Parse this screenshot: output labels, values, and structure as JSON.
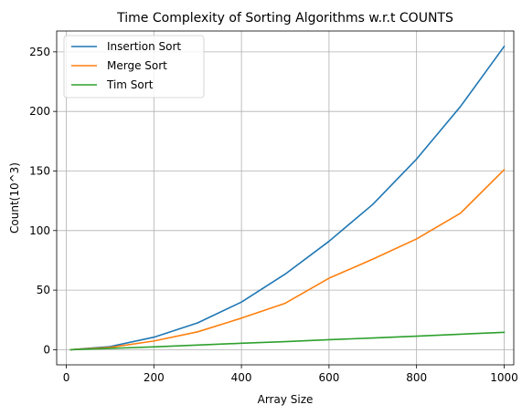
{
  "chart_data": {
    "type": "line",
    "title": "Time Complexity of Sorting Algorithms w.r.t COUNTS",
    "xlabel": "Array Size",
    "ylabel": "Count(10^3)",
    "xlim": [
      -22,
      1022
    ],
    "ylim": [
      -12.7,
      267.5
    ],
    "xticks": [
      0,
      200,
      400,
      600,
      800,
      1000
    ],
    "yticks": [
      0,
      50,
      100,
      150,
      200,
      250
    ],
    "grid": true,
    "legend_position": "top-left",
    "x": [
      10,
      100,
      200,
      300,
      400,
      500,
      600,
      700,
      800,
      900,
      1000
    ],
    "series": [
      {
        "name": "Insertion Sort",
        "color": "#1f77b4",
        "values": [
          0.03,
          2.6,
          10.5,
          22.5,
          40.0,
          63.5,
          91.0,
          122.0,
          160.0,
          204.0,
          254.5
        ]
      },
      {
        "name": "Merge Sort",
        "color": "#ff7f0e",
        "values": [
          0.03,
          1.9,
          7.3,
          15.0,
          26.5,
          39.0,
          60.0,
          76.0,
          93.0,
          114.5,
          151.0
        ]
      },
      {
        "name": "Tim Sort",
        "color": "#2ca02c",
        "values": [
          0.02,
          1.1,
          2.4,
          3.9,
          5.4,
          6.8,
          8.4,
          9.8,
          11.4,
          13.0,
          14.6
        ]
      }
    ]
  }
}
